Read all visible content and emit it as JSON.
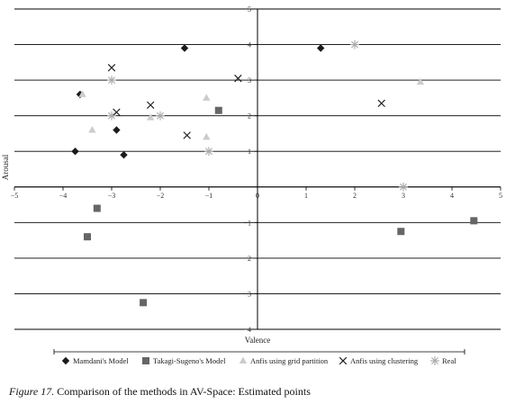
{
  "chart_data": {
    "type": "scatter",
    "title": "",
    "xlabel": "Valence",
    "ylabel": "Arousal",
    "xlim": [
      -5,
      5
    ],
    "ylim": [
      -4,
      5
    ],
    "x_ticks": [
      -5,
      -4,
      -3,
      -2,
      -1,
      0,
      1,
      2,
      3,
      4,
      5
    ],
    "y_ticks": [
      -4,
      -3,
      -2,
      -1,
      0,
      1,
      2,
      3,
      4,
      5
    ],
    "grid": "horizontal",
    "legend_position": "bottom",
    "series": [
      {
        "name": "Mamdani's Model",
        "marker": "diamond",
        "color": "#1a1a1a",
        "points": [
          {
            "x": -1.5,
            "y": 3.9
          },
          {
            "x": 1.3,
            "y": 3.9
          },
          {
            "x": -3.65,
            "y": 2.6
          },
          {
            "x": -2.9,
            "y": 1.6
          },
          {
            "x": -3.75,
            "y": 1.0
          },
          {
            "x": -2.75,
            "y": 0.9
          }
        ]
      },
      {
        "name": "Takagi-Sugeno's Model",
        "marker": "square",
        "color": "#666666",
        "points": [
          {
            "x": -0.8,
            "y": 2.15
          },
          {
            "x": -3.3,
            "y": -0.6
          },
          {
            "x": -3.5,
            "y": -1.4
          },
          {
            "x": -2.35,
            "y": -3.25
          },
          {
            "x": 2.95,
            "y": -1.25
          },
          {
            "x": 4.45,
            "y": -0.95
          }
        ]
      },
      {
        "name": "Anfis using grid partition",
        "marker": "triangle",
        "color": "#cccccc",
        "points": [
          {
            "x": -3.6,
            "y": 2.6
          },
          {
            "x": -3.4,
            "y": 1.6
          },
          {
            "x": -2.2,
            "y": 1.95
          },
          {
            "x": -1.05,
            "y": 2.5
          },
          {
            "x": -1.05,
            "y": 1.4
          },
          {
            "x": 3.35,
            "y": 2.95
          }
        ]
      },
      {
        "name": "Anfis using clustering",
        "marker": "x",
        "color": "#222222",
        "points": [
          {
            "x": -3.0,
            "y": 3.35
          },
          {
            "x": -2.9,
            "y": 2.1
          },
          {
            "x": -2.2,
            "y": 2.3
          },
          {
            "x": -1.45,
            "y": 1.45
          },
          {
            "x": -0.4,
            "y": 3.05
          },
          {
            "x": 2.55,
            "y": 2.35
          }
        ]
      },
      {
        "name": "Real",
        "marker": "asterisk",
        "color": "#aaaaaa",
        "points": [
          {
            "x": -3.0,
            "y": 3.0
          },
          {
            "x": -3.0,
            "y": 2.0
          },
          {
            "x": -2.0,
            "y": 2.0
          },
          {
            "x": -1.0,
            "y": 1.0
          },
          {
            "x": 2.0,
            "y": 4.0
          },
          {
            "x": 3.0,
            "y": 0.0
          }
        ]
      }
    ]
  },
  "caption": {
    "label": "Figure 17.",
    "text": " Comparison of the methods in AV-Space: Estimated points"
  }
}
